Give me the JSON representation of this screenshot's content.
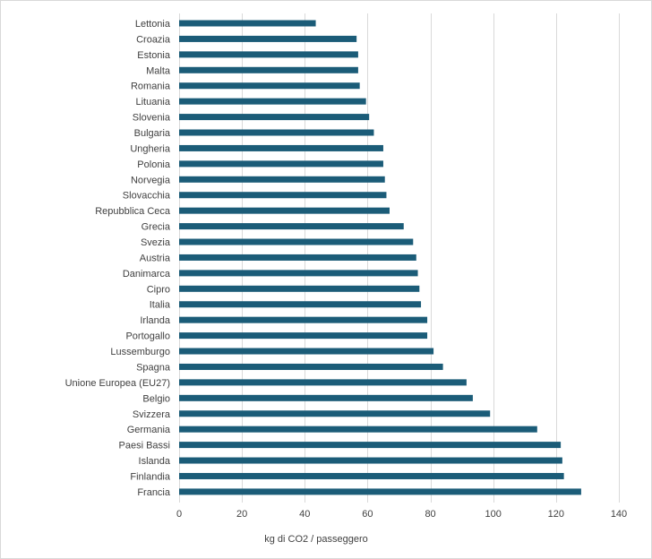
{
  "chart_data": {
    "type": "bar",
    "orientation": "horizontal",
    "title": "",
    "xlabel": "kg di CO2 / passeggero",
    "ylabel": "",
    "xlim": [
      0,
      140
    ],
    "xticks": [
      0,
      20,
      40,
      60,
      80,
      100,
      120,
      140
    ],
    "grid": "vertical",
    "legend": "none",
    "bar_color": "#1b5c78",
    "categories": [
      "Lettonia",
      "Croazia",
      "Estonia",
      "Malta",
      "Romania",
      "Lituania",
      "Slovenia",
      "Bulgaria",
      "Ungheria",
      "Polonia",
      "Norvegia",
      "Slovacchia",
      "Repubblica Ceca",
      "Grecia",
      "Svezia",
      "Austria",
      "Danimarca",
      "Cipro",
      "Italia",
      "Irlanda",
      "Portogallo",
      "Lussemburgo",
      "Spagna",
      "Unione Europea (EU27)",
      "Belgio",
      "Svizzera",
      "Germania",
      "Paesi Bassi",
      "Islanda",
      "Finlandia",
      "Francia"
    ],
    "values": [
      43.5,
      56.5,
      57,
      57,
      57.5,
      59.5,
      60.5,
      62,
      65,
      65,
      65.5,
      66,
      67,
      71.5,
      74.5,
      75.5,
      76,
      76.5,
      77,
      79,
      79,
      81,
      84,
      91.5,
      93.5,
      99,
      114,
      121.5,
      122,
      122.5,
      128
    ]
  }
}
